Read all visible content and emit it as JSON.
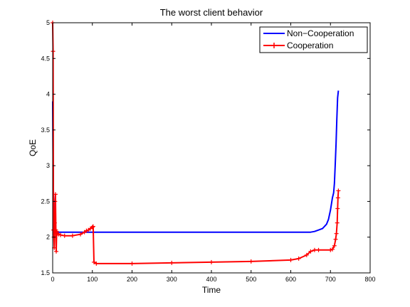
{
  "chart_data": {
    "type": "line",
    "title": "The worst client behavior",
    "xlabel": "Time",
    "ylabel": "QoE",
    "xlim": [
      0,
      800
    ],
    "ylim": [
      1.5,
      5
    ],
    "xticks": [
      0,
      100,
      200,
      300,
      400,
      500,
      600,
      700,
      800
    ],
    "yticks": [
      1.5,
      2,
      2.5,
      3,
      3.5,
      4,
      4.5,
      5
    ],
    "xtick_labels": [
      "0",
      "100",
      "200",
      "300",
      "400",
      "500",
      "600",
      "700",
      "800"
    ],
    "ytick_labels": [
      "1.5",
      "2",
      "2.5",
      "3",
      "3.5",
      "4",
      "4.5",
      "5"
    ],
    "grid": false,
    "legend_position": "top-right",
    "series": [
      {
        "name": "Non−Cooperation",
        "color": "#0000ff",
        "marker": "none",
        "x": [
          0,
          1,
          2,
          3,
          4,
          5,
          6,
          7,
          8,
          10,
          15,
          30,
          100,
          300,
          500,
          650,
          660,
          670,
          680,
          690,
          695,
          700,
          705,
          708,
          710,
          712,
          714,
          716,
          718,
          720
        ],
        "y": [
          3.9,
          3.0,
          2.6,
          2.3,
          2.15,
          2.1,
          2.09,
          2.08,
          2.08,
          2.07,
          2.07,
          2.07,
          2.07,
          2.07,
          2.07,
          2.07,
          2.08,
          2.1,
          2.12,
          2.18,
          2.25,
          2.38,
          2.55,
          2.62,
          2.75,
          3.0,
          3.3,
          3.65,
          3.95,
          4.05
        ]
      },
      {
        "name": "Cooperation",
        "color": "#ff0000",
        "marker": "plus",
        "x": [
          0,
          1,
          2,
          3,
          4,
          5,
          6,
          7,
          8,
          9,
          10,
          12,
          15,
          20,
          30,
          50,
          70,
          80,
          85,
          90,
          95,
          100,
          102,
          104,
          110,
          200,
          300,
          400,
          500,
          600,
          620,
          640,
          650,
          660,
          670,
          700,
          705,
          710,
          713,
          715,
          717,
          718,
          719,
          720
        ],
        "y": [
          5.0,
          4.6,
          2.1,
          2.0,
          1.85,
          2.2,
          2.5,
          2.6,
          2.1,
          1.8,
          2.08,
          2.05,
          2.04,
          2.03,
          2.02,
          2.02,
          2.04,
          2.07,
          2.09,
          2.1,
          2.12,
          2.14,
          2.15,
          1.65,
          1.63,
          1.63,
          1.64,
          1.65,
          1.66,
          1.68,
          1.7,
          1.75,
          1.8,
          1.82,
          1.82,
          1.82,
          1.83,
          1.88,
          1.97,
          2.05,
          2.2,
          2.4,
          2.55,
          2.65
        ]
      }
    ]
  }
}
